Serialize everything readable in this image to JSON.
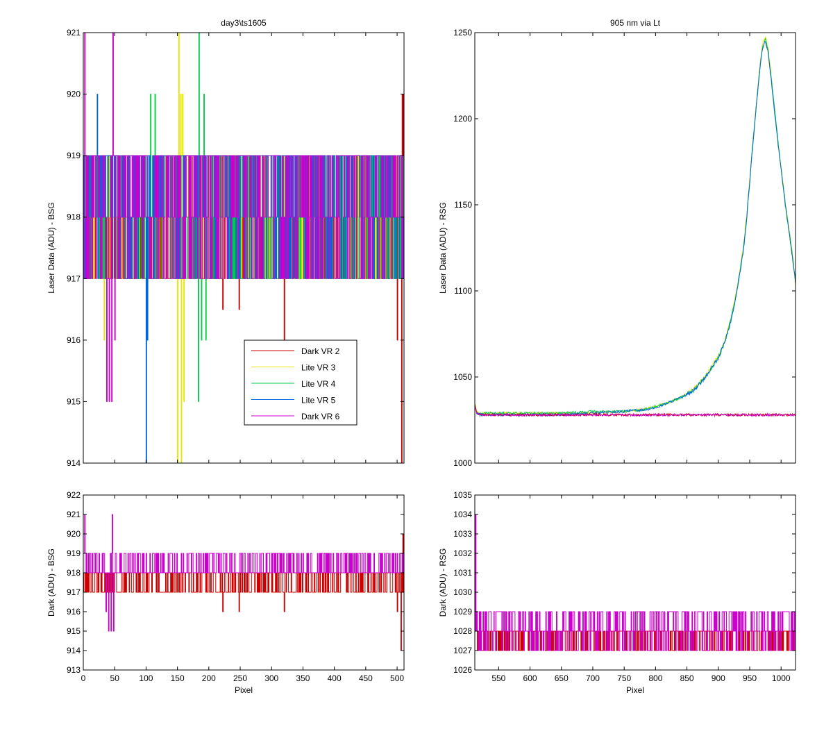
{
  "figure": {
    "background": "#ffffff",
    "series_colors": [
      "#cc0000",
      "#e6e600",
      "#00cc44",
      "#0066dd",
      "#cc00cc"
    ]
  },
  "chart_data": [
    {
      "type": "line",
      "title": "day3\\ts1605",
      "xlabel": "",
      "ylabel": "Laser Data (ADU) - BSG",
      "xlim": [
        0,
        511
      ],
      "ylim": [
        914,
        921
      ],
      "xticks": [
        0,
        50,
        100,
        150,
        200,
        250,
        300,
        350,
        400,
        450,
        500
      ],
      "xtick_labels_visible": false,
      "yticks": [
        914,
        915,
        916,
        917,
        918,
        919,
        920,
        921
      ],
      "legend": {
        "placement": "lower-center",
        "entries": [
          "Dark VR 2",
          "Lite VR 3",
          "Lite VR 4",
          "Lite VR 5",
          "Dark VR 6"
        ]
      },
      "series": [
        {
          "name": "Dark VR 2",
          "color": "#cc0000",
          "baseline": 917.5,
          "description_values": {
            "low": 917,
            "high": 918,
            "dips": [
              [
                222,
                916.5
              ],
              [
                248,
                916.5
              ],
              [
                320,
                916
              ],
              [
                500,
                916
              ],
              [
                507,
                914
              ]
            ],
            "spikes": [
              [
                508,
                920
              ],
              [
                510,
                920
              ]
            ]
          }
        },
        {
          "name": "Lite VR 3",
          "color": "#e6e600",
          "baseline": 917.8,
          "description_values": {
            "low": 917,
            "high": 919,
            "dips": [
              [
                33,
                916
              ],
              [
                150,
                914
              ],
              [
                156,
                914
              ],
              [
                160,
                915
              ]
            ],
            "spikes": [
              [
                152,
                921
              ],
              [
                155,
                920
              ],
              [
                158,
                920
              ]
            ]
          }
        },
        {
          "name": "Lite VR 4",
          "color": "#00cc44",
          "baseline": 918.2,
          "description_values": {
            "low": 917,
            "high": 919,
            "dips": [
              [
                183,
                915
              ],
              [
                188,
                916
              ],
              [
                195,
                916
              ]
            ],
            "spikes": [
              [
                107,
                920
              ],
              [
                114,
                920
              ],
              [
                184,
                921
              ],
              [
                192,
                920
              ]
            ]
          }
        },
        {
          "name": "Lite VR 5",
          "color": "#0066dd",
          "baseline": 918.3,
          "description_values": {
            "low": 917,
            "high": 919,
            "dips": [
              [
                100,
                914
              ],
              [
                102,
                916
              ]
            ],
            "spikes": [
              [
                22,
                920
              ]
            ]
          }
        },
        {
          "name": "Dark VR 6",
          "color": "#cc00cc",
          "baseline": 918.2,
          "description_values": {
            "low": 917,
            "high": 919,
            "dips": [
              [
                2,
                915
              ],
              [
                37,
                915
              ],
              [
                41,
                915
              ],
              [
                45,
                915
              ],
              [
                50,
                916
              ]
            ],
            "spikes": [
              [
                2,
                921
              ],
              [
                47,
                921
              ]
            ]
          }
        }
      ]
    },
    {
      "type": "line",
      "title": "905 nm via Lt",
      "xlabel": "",
      "ylabel": "Laser Data (ADU) - RSG",
      "xlim": [
        512,
        1023
      ],
      "ylim": [
        1000,
        1250
      ],
      "xticks": [
        550,
        600,
        650,
        700,
        750,
        800,
        850,
        900,
        950,
        1000
      ],
      "xtick_labels_visible": false,
      "yticks": [
        1000,
        1050,
        1100,
        1150,
        1200,
        1250
      ],
      "series": [
        {
          "name": "Lite VR 3",
          "color": "#e6e600",
          "x": [
            512,
            515,
            520,
            550,
            600,
            650,
            700,
            750,
            780,
            800,
            820,
            840,
            860,
            880,
            900,
            910,
            920,
            930,
            940,
            945,
            950,
            955,
            960,
            965,
            970,
            975,
            980,
            985,
            990,
            995,
            1000,
            1005,
            1010,
            1015,
            1020,
            1023
          ],
          "y": [
            1035,
            1030,
            1029,
            1029,
            1029,
            1029,
            1029,
            1030,
            1031,
            1033,
            1035,
            1038,
            1043,
            1051,
            1062,
            1071,
            1084,
            1102,
            1126,
            1143,
            1165,
            1187,
            1207,
            1226,
            1242,
            1248,
            1239,
            1222,
            1205,
            1188,
            1172,
            1157,
            1143,
            1130,
            1116,
            1102
          ]
        },
        {
          "name": "Lite VR 4",
          "color": "#00cc44",
          "x": [
            512,
            515,
            520,
            550,
            600,
            650,
            700,
            750,
            780,
            800,
            820,
            840,
            860,
            880,
            900,
            910,
            920,
            930,
            940,
            945,
            950,
            955,
            960,
            965,
            970,
            975,
            980,
            985,
            990,
            995,
            1000,
            1005,
            1010,
            1015,
            1020,
            1023
          ],
          "y": [
            1034,
            1029,
            1029,
            1029,
            1029,
            1029,
            1030,
            1030,
            1031,
            1033,
            1035,
            1038,
            1042,
            1050,
            1061,
            1070,
            1083,
            1101,
            1125,
            1142,
            1164,
            1186,
            1206,
            1225,
            1241,
            1246,
            1238,
            1221,
            1204,
            1187,
            1171,
            1156,
            1142,
            1129,
            1115,
            1104
          ]
        },
        {
          "name": "Lite VR 5",
          "color": "#0066dd",
          "x": [
            512,
            515,
            520,
            550,
            600,
            650,
            700,
            750,
            780,
            800,
            820,
            840,
            860,
            880,
            900,
            910,
            920,
            930,
            940,
            945,
            950,
            955,
            960,
            965,
            970,
            975,
            980,
            985,
            990,
            995,
            1000,
            1005,
            1010,
            1015,
            1020,
            1023
          ],
          "y": [
            1033,
            1029,
            1028,
            1028,
            1028,
            1028,
            1029,
            1030,
            1031,
            1032,
            1035,
            1038,
            1042,
            1050,
            1061,
            1070,
            1082,
            1100,
            1124,
            1141,
            1163,
            1185,
            1205,
            1224,
            1240,
            1245,
            1237,
            1220,
            1203,
            1186,
            1170,
            1155,
            1141,
            1128,
            1114,
            1105
          ]
        },
        {
          "name": "Dark VR 2",
          "color": "#cc0000",
          "x": [
            512,
            515,
            520,
            1023
          ],
          "y": [
            1034,
            1029,
            1028,
            1028
          ]
        },
        {
          "name": "Dark VR 6",
          "color": "#cc00cc",
          "x": [
            512,
            515,
            520,
            1023
          ],
          "y": [
            1034,
            1029,
            1028,
            1028
          ]
        }
      ]
    },
    {
      "type": "line",
      "title": "",
      "xlabel": "Pixel",
      "ylabel": "Dark (ADU) - BSG",
      "xlim": [
        0,
        511
      ],
      "ylim": [
        913,
        922
      ],
      "xticks": [
        0,
        50,
        100,
        150,
        200,
        250,
        300,
        350,
        400,
        450,
        500
      ],
      "yticks": [
        913,
        914,
        915,
        916,
        917,
        918,
        919,
        920,
        921,
        922
      ],
      "series": [
        {
          "name": "Dark VR 2",
          "color": "#cc0000",
          "baseline": 917.5,
          "description_values": {
            "low": 917,
            "high": 918,
            "dips": [
              [
                222,
                916
              ],
              [
                248,
                916
              ],
              [
                320,
                916
              ],
              [
                500,
                916
              ],
              [
                506,
                914
              ]
            ],
            "spikes": [
              [
                509,
                920
              ]
            ]
          }
        },
        {
          "name": "Dark VR 6",
          "color": "#cc00cc",
          "baseline": 918.4,
          "description_values": {
            "low": 918,
            "high": 919,
            "dips": [
              [
                36,
                916
              ],
              [
                40,
                915
              ],
              [
                44,
                915
              ],
              [
                48,
                915
              ]
            ],
            "spikes": [
              [
                2,
                921
              ],
              [
                46,
                921
              ]
            ]
          }
        }
      ]
    },
    {
      "type": "line",
      "title": "",
      "xlabel": "Pixel",
      "ylabel": "Dark (ADU) - RSG",
      "xlim": [
        512,
        1023
      ],
      "ylim": [
        1026,
        1035
      ],
      "xticks": [
        550,
        600,
        650,
        700,
        750,
        800,
        850,
        900,
        950,
        1000
      ],
      "yticks": [
        1026,
        1027,
        1028,
        1029,
        1030,
        1031,
        1032,
        1033,
        1034,
        1035
      ],
      "series": [
        {
          "name": "Dark VR 2",
          "color": "#cc0000",
          "baseline": 1027.6,
          "description_values": {
            "low": 1027,
            "high": 1028
          }
        },
        {
          "name": "Dark VR 6",
          "color": "#cc00cc",
          "baseline": 1028.2,
          "description_values": {
            "low": 1027,
            "high": 1029,
            "spikes": [
              [
                513,
                1034
              ]
            ]
          }
        }
      ]
    }
  ]
}
